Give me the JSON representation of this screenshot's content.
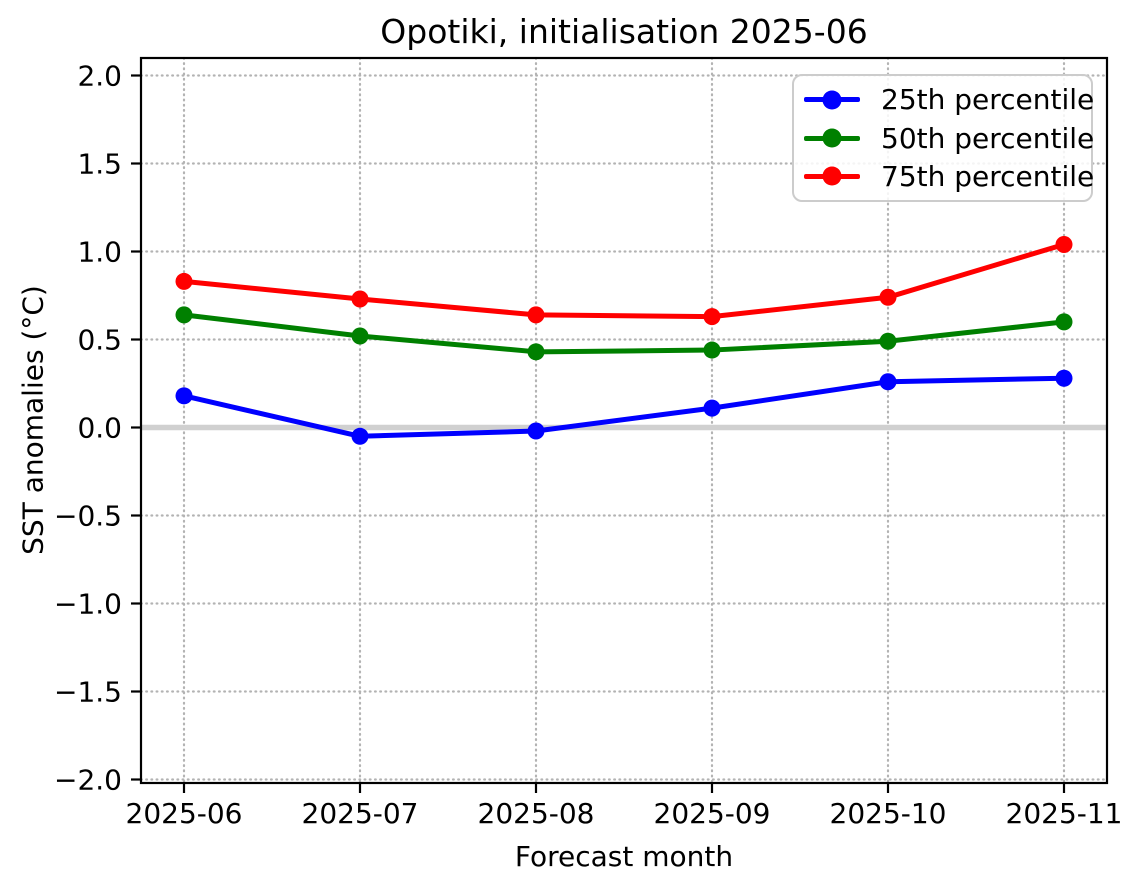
{
  "chart_data": {
    "type": "line",
    "title": "Opotiki, initialisation 2025-06",
    "xlabel": "Forecast month",
    "ylabel": "SST anomalies (°C)",
    "categories": [
      "2025-06",
      "2025-07",
      "2025-08",
      "2025-09",
      "2025-10",
      "2025-11"
    ],
    "series": [
      {
        "name": "25th percentile",
        "color": "#0000ff",
        "marker": "circle",
        "values": [
          0.18,
          -0.05,
          -0.02,
          0.11,
          0.26,
          0.28
        ]
      },
      {
        "name": "50th percentile",
        "color": "#008000",
        "marker": "circle",
        "values": [
          0.64,
          0.52,
          0.43,
          0.44,
          0.49,
          0.6
        ]
      },
      {
        "name": "75th percentile",
        "color": "#ff0000",
        "marker": "circle",
        "values": [
          0.83,
          0.73,
          0.64,
          0.63,
          0.74,
          1.04
        ]
      }
    ],
    "ylim": [
      -2.0,
      2.0
    ],
    "yticks": [
      2.0,
      1.5,
      1.0,
      0.5,
      0.0,
      -0.5,
      -1.0,
      -1.5,
      -2.0
    ],
    "ytick_labels": [
      "2.0",
      "1.5",
      "1.0",
      "0.5",
      "0.0",
      "−0.5",
      "−1.0",
      "−1.5",
      "−2.0"
    ],
    "grid": true,
    "grid_style": "dotted",
    "legend": {
      "position": "upper right",
      "entries": [
        "25th percentile",
        "50th percentile",
        "75th percentile"
      ]
    },
    "zero_line": {
      "value": 0.0,
      "color": "#d0d0d0"
    },
    "colors": {
      "grid": "#b3b3b3",
      "frame": "#000000"
    }
  }
}
